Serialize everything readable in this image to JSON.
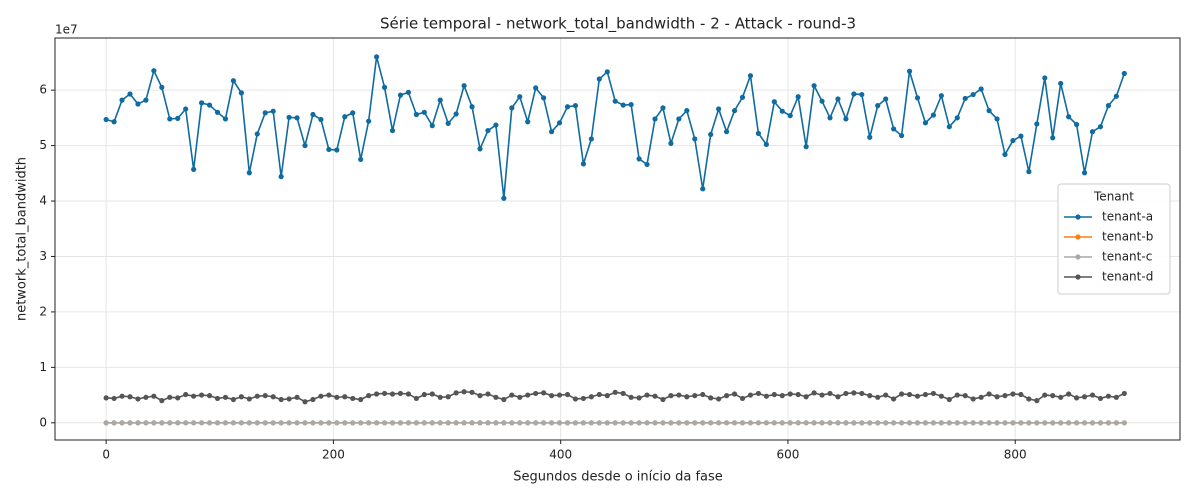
{
  "chart_data": {
    "type": "line",
    "title": "Série temporal - network_total_bandwidth - 2 - Attack - round-3",
    "xlabel": "Segundos desde o início da fase",
    "ylabel": "network_total_bandwidth",
    "y_offset_label": "1e7",
    "legend_title": "Tenant",
    "legend": "center right",
    "grid": true,
    "xlim": [
      -45,
      945
    ],
    "ylim": [
      -0.31,
      6.94
    ],
    "xticks": [
      0,
      200,
      400,
      600,
      800
    ],
    "yticks": [
      0,
      1,
      2,
      3,
      4,
      5,
      6
    ],
    "x": [
      0,
      7,
      14,
      21,
      28,
      35,
      42,
      49,
      56,
      63,
      70,
      77,
      84,
      91,
      98,
      105,
      112,
      119,
      126,
      133,
      140,
      147,
      154,
      161,
      168,
      175,
      182,
      189,
      196,
      203,
      210,
      217,
      224,
      231,
      238,
      245,
      252,
      259,
      266,
      273,
      280,
      287,
      294,
      301,
      308,
      315,
      322,
      329,
      336,
      343,
      350,
      357,
      364,
      371,
      378,
      385,
      392,
      399,
      406,
      413,
      420,
      427,
      434,
      441,
      448,
      455,
      462,
      469,
      476,
      483,
      490,
      497,
      504,
      511,
      518,
      525,
      532,
      539,
      546,
      553,
      560,
      567,
      574,
      581,
      588,
      595,
      602,
      609,
      616,
      623,
      630,
      637,
      644,
      651,
      658,
      665,
      672,
      679,
      686,
      693,
      700,
      707,
      714,
      721,
      728,
      735,
      742,
      749,
      756,
      763,
      770,
      777,
      784,
      791,
      798,
      805,
      812,
      819,
      826,
      833,
      840,
      847,
      854,
      861,
      868,
      875,
      882,
      889,
      896
    ],
    "series": [
      {
        "name": "tenant-a",
        "color": "#0f6ba0",
        "values": [
          5.47,
          5.43,
          5.82,
          5.93,
          5.75,
          5.82,
          6.35,
          6.05,
          5.48,
          5.49,
          5.66,
          4.57,
          5.77,
          5.73,
          5.6,
          5.48,
          6.17,
          5.95,
          4.51,
          5.21,
          5.59,
          5.62,
          4.44,
          5.51,
          5.5,
          5.0,
          5.56,
          5.47,
          4.93,
          4.92,
          5.52,
          5.59,
          4.75,
          5.44,
          6.6,
          6.05,
          5.27,
          5.91,
          5.96,
          5.56,
          5.6,
          5.36,
          5.82,
          5.4,
          5.57,
          6.08,
          5.7,
          4.94,
          5.27,
          5.37,
          4.05,
          5.68,
          5.88,
          5.43,
          6.04,
          5.86,
          5.25,
          5.41,
          5.7,
          5.72,
          4.67,
          5.12,
          6.2,
          6.33,
          5.8,
          5.73,
          5.74,
          4.76,
          4.66,
          5.48,
          5.68,
          5.04,
          5.48,
          5.63,
          5.12,
          4.22,
          5.2,
          5.66,
          5.25,
          5.63,
          5.87,
          6.26,
          5.22,
          5.02,
          5.79,
          5.62,
          5.54,
          5.88,
          4.98,
          6.08,
          5.8,
          5.5,
          5.84,
          5.48,
          5.93,
          5.92,
          5.15,
          5.72,
          5.84,
          5.3,
          5.18,
          6.34,
          5.86,
          5.41,
          5.55,
          5.9,
          5.34,
          5.5,
          5.85,
          5.92,
          6.02,
          5.63,
          5.48,
          4.84,
          5.09,
          5.17,
          4.53,
          5.39,
          6.22,
          5.14,
          6.12,
          5.52,
          5.38,
          4.51,
          5.25,
          5.34,
          5.72,
          5.89,
          6.3
        ]
      },
      {
        "name": "tenant-b",
        "color": "#ff7f0e",
        "values": [
          0,
          0,
          0,
          0,
          0,
          0,
          0,
          0,
          0,
          0,
          0,
          0,
          0,
          0,
          0,
          0,
          0,
          0,
          0,
          0,
          0,
          0,
          0,
          0,
          0,
          0,
          0,
          0,
          0,
          0,
          0,
          0,
          0,
          0,
          0,
          0,
          0,
          0,
          0,
          0,
          0,
          0,
          0,
          0,
          0,
          0,
          0,
          0,
          0,
          0,
          0,
          0,
          0,
          0,
          0,
          0,
          0,
          0,
          0,
          0,
          0,
          0,
          0,
          0,
          0,
          0,
          0,
          0,
          0,
          0,
          0,
          0,
          0,
          0,
          0,
          0,
          0,
          0,
          0,
          0,
          0,
          0,
          0,
          0,
          0,
          0,
          0,
          0,
          0,
          0,
          0,
          0,
          0,
          0,
          0,
          0,
          0,
          0,
          0,
          0,
          0,
          0,
          0,
          0,
          0,
          0,
          0,
          0,
          0,
          0,
          0,
          0,
          0,
          0,
          0,
          0,
          0,
          0,
          0,
          0,
          0,
          0,
          0,
          0,
          0,
          0,
          0,
          0,
          0
        ]
      },
      {
        "name": "tenant-c",
        "color": "#a8a8a8",
        "values": [
          0,
          0,
          0,
          0,
          0,
          0,
          0,
          0,
          0,
          0,
          0,
          0,
          0,
          0,
          0,
          0,
          0,
          0,
          0,
          0,
          0,
          0,
          0,
          0,
          0,
          0,
          0,
          0,
          0,
          0,
          0,
          0,
          0,
          0,
          0,
          0,
          0,
          0,
          0,
          0,
          0,
          0,
          0,
          0,
          0,
          0,
          0,
          0,
          0,
          0,
          0,
          0,
          0,
          0,
          0,
          0,
          0,
          0,
          0,
          0,
          0,
          0,
          0,
          0,
          0,
          0,
          0,
          0,
          0,
          0,
          0,
          0,
          0,
          0,
          0,
          0,
          0,
          0,
          0,
          0,
          0,
          0,
          0,
          0,
          0,
          0,
          0,
          0,
          0,
          0,
          0,
          0,
          0,
          0,
          0,
          0,
          0,
          0,
          0,
          0,
          0,
          0,
          0,
          0,
          0,
          0,
          0,
          0,
          0,
          0,
          0,
          0,
          0,
          0,
          0,
          0,
          0,
          0,
          0,
          0,
          0,
          0,
          0,
          0,
          0,
          0,
          0,
          0,
          0
        ]
      },
      {
        "name": "tenant-d",
        "color": "#555555",
        "values": [
          0.45,
          0.44,
          0.48,
          0.47,
          0.43,
          0.46,
          0.48,
          0.4,
          0.46,
          0.45,
          0.51,
          0.48,
          0.5,
          0.49,
          0.44,
          0.46,
          0.42,
          0.47,
          0.43,
          0.48,
          0.49,
          0.47,
          0.42,
          0.43,
          0.46,
          0.38,
          0.42,
          0.48,
          0.5,
          0.46,
          0.47,
          0.44,
          0.42,
          0.49,
          0.52,
          0.53,
          0.52,
          0.53,
          0.52,
          0.44,
          0.51,
          0.52,
          0.46,
          0.47,
          0.54,
          0.56,
          0.55,
          0.49,
          0.52,
          0.46,
          0.42,
          0.5,
          0.46,
          0.5,
          0.53,
          0.54,
          0.49,
          0.5,
          0.51,
          0.43,
          0.44,
          0.47,
          0.51,
          0.49,
          0.55,
          0.53,
          0.46,
          0.45,
          0.5,
          0.48,
          0.42,
          0.49,
          0.5,
          0.47,
          0.49,
          0.51,
          0.45,
          0.43,
          0.49,
          0.52,
          0.44,
          0.5,
          0.53,
          0.48,
          0.51,
          0.49,
          0.52,
          0.51,
          0.47,
          0.54,
          0.5,
          0.53,
          0.47,
          0.53,
          0.54,
          0.53,
          0.49,
          0.46,
          0.5,
          0.43,
          0.52,
          0.51,
          0.48,
          0.51,
          0.53,
          0.48,
          0.42,
          0.5,
          0.49,
          0.43,
          0.46,
          0.52,
          0.47,
          0.49,
          0.52,
          0.51,
          0.43,
          0.4,
          0.5,
          0.49,
          0.46,
          0.52,
          0.45,
          0.47,
          0.5,
          0.44,
          0.48,
          0.46,
          0.53
        ]
      }
    ]
  }
}
